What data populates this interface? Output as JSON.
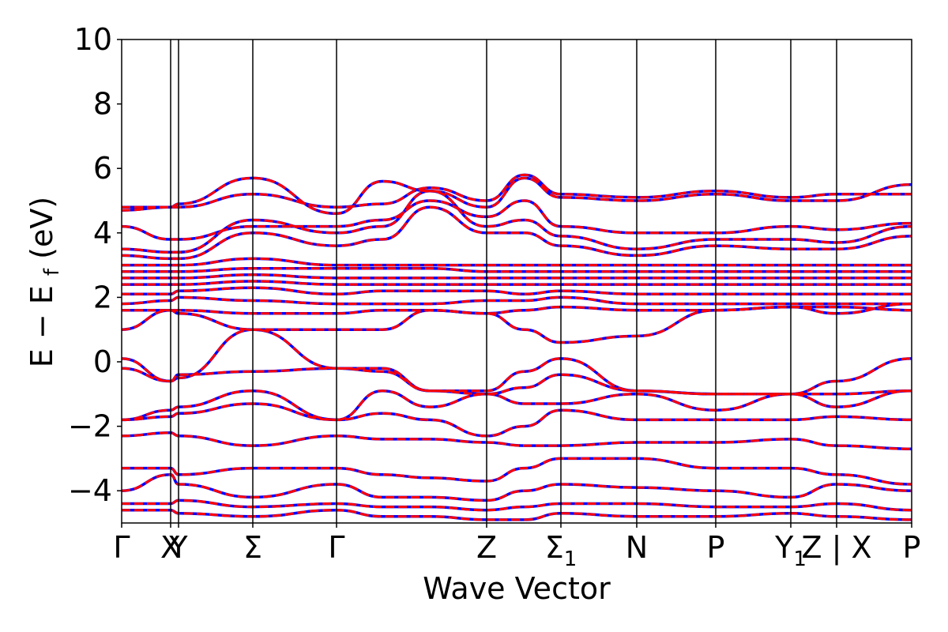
{
  "chart_data": {
    "type": "line",
    "xlabel": "Wave Vector",
    "ylabel": "E − E",
    "ylabel_subscript": "f",
    "ylabel_unit": " (eV)",
    "ylim": [
      -5,
      10
    ],
    "yticks": [
      -4,
      -2,
      0,
      2,
      4,
      6,
      8,
      10
    ],
    "ytick_labels": [
      "−4",
      "−2",
      "0",
      "2",
      "4",
      "6",
      "8",
      "10"
    ],
    "xlim": [
      0,
      1
    ],
    "kpoints": [
      {
        "x": 0.0,
        "label": "Γ",
        "sub": ""
      },
      {
        "x": 0.062,
        "label": "X",
        "sub": ""
      },
      {
        "x": 0.072,
        "label": "Y",
        "sub": ""
      },
      {
        "x": 0.166,
        "label": "Σ",
        "sub": ""
      },
      {
        "x": 0.272,
        "label": "Γ",
        "sub": ""
      },
      {
        "x": 0.462,
        "label": "Z",
        "sub": ""
      },
      {
        "x": 0.556,
        "label": "Σ",
        "sub": "1"
      },
      {
        "x": 0.652,
        "label": "N",
        "sub": ""
      },
      {
        "x": 0.752,
        "label": "P",
        "sub": ""
      },
      {
        "x": 0.847,
        "label": "Y",
        "sub": "1"
      },
      {
        "x": 0.905,
        "label": "Z | X",
        "sub": ""
      },
      {
        "x": 1.0,
        "label": "P",
        "sub": ""
      }
    ],
    "grid": false,
    "series_colors": [
      "#0000ff",
      "#ff0000"
    ],
    "series_styles": [
      "solid",
      "dashed"
    ],
    "series": [
      {
        "values": [
          [
            4.8,
            4.8,
            4.8,
            5.2,
            4.8,
            4.9,
            5.4,
            5.0,
            5.8,
            5.2,
            5.1,
            5.3,
            5.1,
            5.2,
            5.2
          ],
          [
            4.7,
            4.8,
            4.9,
            5.7,
            4.6,
            5.6,
            5.3,
            4.8,
            5.7,
            5.1,
            5.0,
            5.2,
            5.0,
            5.0,
            5.5
          ],
          [
            4.2,
            3.8,
            3.8,
            4.2,
            4.2,
            4.4,
            5.0,
            4.5,
            5.0,
            4.2,
            4.0,
            4.0,
            4.2,
            4.1,
            4.3
          ],
          [
            3.5,
            3.4,
            3.4,
            4.4,
            4.0,
            4.2,
            5.3,
            4.2,
            4.4,
            3.9,
            3.5,
            3.8,
            3.8,
            3.7,
            4.2
          ],
          [
            3.3,
            3.2,
            3.2,
            4.0,
            3.6,
            3.8,
            4.8,
            4.0,
            4.0,
            3.6,
            3.3,
            3.6,
            3.5,
            3.5,
            3.9
          ],
          [
            3.0,
            3.0,
            3.0,
            3.2,
            3.0,
            3.0,
            3.0,
            3.0,
            3.0,
            3.0,
            3.0,
            3.0,
            3.0,
            3.0,
            3.0
          ],
          [
            2.8,
            2.8,
            2.8,
            2.9,
            2.9,
            2.9,
            2.9,
            2.8,
            2.8,
            2.8,
            2.8,
            2.8,
            2.8,
            2.8,
            2.8
          ],
          [
            2.6,
            2.6,
            2.6,
            2.7,
            2.6,
            2.6,
            2.6,
            2.6,
            2.6,
            2.6,
            2.6,
            2.6,
            2.6,
            2.6,
            2.6
          ],
          [
            2.4,
            2.4,
            2.4,
            2.5,
            2.4,
            2.4,
            2.4,
            2.4,
            2.4,
            2.4,
            2.4,
            2.4,
            2.4,
            2.4,
            2.4
          ],
          [
            2.1,
            2.1,
            2.2,
            2.3,
            2.1,
            2.2,
            2.2,
            2.2,
            2.1,
            2.2,
            2.1,
            2.1,
            2.1,
            2.1,
            2.1
          ],
          [
            1.8,
            1.9,
            2.0,
            1.9,
            1.8,
            1.8,
            1.8,
            1.9,
            1.9,
            2.0,
            1.8,
            1.8,
            1.8,
            1.8,
            1.8
          ],
          [
            1.6,
            1.6,
            1.6,
            1.5,
            1.5,
            1.6,
            1.6,
            1.5,
            1.6,
            1.7,
            1.6,
            1.6,
            1.7,
            1.7,
            1.6
          ],
          [
            1.0,
            1.6,
            1.5,
            1.0,
            1.0,
            1.0,
            1.6,
            1.5,
            1.0,
            0.6,
            0.8,
            1.6,
            1.7,
            1.5,
            1.8
          ],
          [
            0.1,
            -0.6,
            -0.5,
            1.0,
            -0.2,
            -0.3,
            -0.9,
            -0.9,
            -0.3,
            0.1,
            -0.9,
            -1.0,
            -1.0,
            -0.6,
            0.1
          ],
          [
            -0.2,
            -0.6,
            -0.4,
            -0.3,
            -0.2,
            -0.2,
            -0.9,
            -1.0,
            -0.8,
            -0.4,
            -0.9,
            -1.0,
            -1.0,
            -1.0,
            -0.9
          ],
          [
            -1.8,
            -1.5,
            -1.4,
            -0.9,
            -1.8,
            -0.9,
            -1.4,
            -1.0,
            -1.3,
            -1.3,
            -1.0,
            -1.5,
            -1.0,
            -1.4,
            -0.9
          ],
          [
            -1.8,
            -1.7,
            -1.6,
            -1.3,
            -1.8,
            -1.6,
            -1.8,
            -2.3,
            -2.0,
            -1.5,
            -1.8,
            -1.8,
            -1.8,
            -1.7,
            -1.8
          ],
          [
            -2.3,
            -2.2,
            -2.3,
            -2.6,
            -2.3,
            -2.4,
            -2.4,
            -2.5,
            -2.6,
            -2.6,
            -2.5,
            -2.5,
            -2.4,
            -2.6,
            -2.7
          ],
          [
            -3.3,
            -3.3,
            -3.5,
            -3.3,
            -3.3,
            -3.5,
            -3.6,
            -3.7,
            -3.3,
            -3.0,
            -3.0,
            -3.3,
            -3.3,
            -3.5,
            -3.8
          ],
          [
            -4.0,
            -3.5,
            -3.8,
            -4.2,
            -3.8,
            -4.2,
            -4.2,
            -4.3,
            -4.0,
            -3.8,
            -3.9,
            -4.0,
            -4.2,
            -3.8,
            -4.0
          ],
          [
            -4.4,
            -4.4,
            -4.3,
            -4.5,
            -4.4,
            -4.5,
            -4.5,
            -4.6,
            -4.5,
            -4.4,
            -4.4,
            -4.5,
            -4.5,
            -4.4,
            -4.6
          ],
          [
            -4.6,
            -4.6,
            -4.7,
            -4.8,
            -4.6,
            -4.8,
            -4.8,
            -4.9,
            -4.9,
            -4.7,
            -4.8,
            -4.8,
            -4.7,
            -4.8,
            -4.9
          ]
        ]
      },
      {
        "values": [
          [
            4.8,
            4.8,
            4.8,
            5.2,
            4.8,
            4.9,
            5.4,
            5.0,
            5.8,
            5.2,
            5.1,
            5.3,
            5.1,
            5.2,
            5.2
          ],
          [
            4.7,
            4.8,
            4.9,
            5.7,
            4.6,
            5.6,
            5.3,
            4.8,
            5.7,
            5.1,
            5.0,
            5.2,
            5.0,
            5.0,
            5.5
          ],
          [
            4.2,
            3.8,
            3.8,
            4.2,
            4.2,
            4.4,
            5.0,
            4.5,
            5.0,
            4.2,
            4.0,
            4.0,
            4.2,
            4.1,
            4.3
          ],
          [
            3.5,
            3.4,
            3.4,
            4.4,
            4.0,
            4.2,
            5.3,
            4.2,
            4.4,
            3.9,
            3.5,
            3.8,
            3.8,
            3.7,
            4.2
          ],
          [
            3.3,
            3.2,
            3.2,
            4.0,
            3.6,
            3.8,
            4.8,
            4.0,
            4.0,
            3.6,
            3.3,
            3.6,
            3.5,
            3.5,
            3.9
          ],
          [
            3.0,
            3.0,
            3.0,
            3.2,
            3.0,
            3.0,
            3.0,
            3.0,
            3.0,
            3.0,
            3.0,
            3.0,
            3.0,
            3.0,
            3.0
          ],
          [
            2.8,
            2.8,
            2.8,
            2.9,
            2.9,
            2.9,
            2.9,
            2.8,
            2.8,
            2.8,
            2.8,
            2.8,
            2.8,
            2.8,
            2.8
          ],
          [
            2.6,
            2.6,
            2.6,
            2.7,
            2.6,
            2.6,
            2.6,
            2.6,
            2.6,
            2.6,
            2.6,
            2.6,
            2.6,
            2.6,
            2.6
          ],
          [
            2.4,
            2.4,
            2.4,
            2.5,
            2.4,
            2.4,
            2.4,
            2.4,
            2.4,
            2.4,
            2.4,
            2.4,
            2.4,
            2.4,
            2.4
          ],
          [
            2.1,
            2.1,
            2.2,
            2.3,
            2.1,
            2.2,
            2.2,
            2.2,
            2.1,
            2.2,
            2.1,
            2.1,
            2.1,
            2.1,
            2.1
          ],
          [
            1.8,
            1.9,
            2.0,
            1.9,
            1.8,
            1.8,
            1.8,
            1.9,
            1.9,
            2.0,
            1.8,
            1.8,
            1.8,
            1.8,
            1.8
          ],
          [
            1.6,
            1.6,
            1.6,
            1.5,
            1.5,
            1.6,
            1.6,
            1.5,
            1.6,
            1.7,
            1.6,
            1.6,
            1.7,
            1.7,
            1.6
          ],
          [
            1.0,
            1.6,
            1.5,
            1.0,
            1.0,
            1.0,
            1.6,
            1.5,
            1.0,
            0.6,
            0.8,
            1.6,
            1.7,
            1.5,
            1.8
          ],
          [
            0.1,
            -0.6,
            -0.5,
            1.0,
            -0.2,
            -0.3,
            -0.9,
            -0.9,
            -0.3,
            0.1,
            -0.9,
            -1.0,
            -1.0,
            -0.6,
            0.1
          ],
          [
            -0.2,
            -0.6,
            -0.4,
            -0.3,
            -0.2,
            -0.2,
            -0.9,
            -1.0,
            -0.8,
            -0.4,
            -0.9,
            -1.0,
            -1.0,
            -1.0,
            -0.9
          ],
          [
            -1.8,
            -1.5,
            -1.4,
            -0.9,
            -1.8,
            -0.9,
            -1.4,
            -1.0,
            -1.3,
            -1.3,
            -1.0,
            -1.5,
            -1.0,
            -1.4,
            -0.9
          ],
          [
            -1.8,
            -1.7,
            -1.6,
            -1.3,
            -1.8,
            -1.6,
            -1.8,
            -2.3,
            -2.0,
            -1.5,
            -1.8,
            -1.8,
            -1.8,
            -1.7,
            -1.8
          ],
          [
            -2.3,
            -2.2,
            -2.3,
            -2.6,
            -2.3,
            -2.4,
            -2.4,
            -2.5,
            -2.6,
            -2.6,
            -2.5,
            -2.5,
            -2.4,
            -2.6,
            -2.7
          ],
          [
            -3.3,
            -3.3,
            -3.5,
            -3.3,
            -3.3,
            -3.5,
            -3.6,
            -3.7,
            -3.3,
            -3.0,
            -3.0,
            -3.3,
            -3.3,
            -3.5,
            -3.8
          ],
          [
            -4.0,
            -3.5,
            -3.8,
            -4.2,
            -3.8,
            -4.2,
            -4.2,
            -4.3,
            -4.0,
            -3.8,
            -3.9,
            -4.0,
            -4.2,
            -3.8,
            -4.0
          ],
          [
            -4.4,
            -4.4,
            -4.3,
            -4.5,
            -4.4,
            -4.5,
            -4.5,
            -4.6,
            -4.5,
            -4.4,
            -4.4,
            -4.5,
            -4.5,
            -4.4,
            -4.6
          ],
          [
            -4.6,
            -4.6,
            -4.7,
            -4.8,
            -4.6,
            -4.8,
            -4.8,
            -4.9,
            -4.9,
            -4.7,
            -4.8,
            -4.8,
            -4.7,
            -4.8,
            -4.9
          ]
        ]
      }
    ],
    "band_sample_x": [
      0.0,
      0.062,
      0.072,
      0.166,
      0.272,
      0.33,
      0.39,
      0.462,
      0.51,
      0.556,
      0.652,
      0.752,
      0.847,
      0.905,
      1.0
    ]
  }
}
